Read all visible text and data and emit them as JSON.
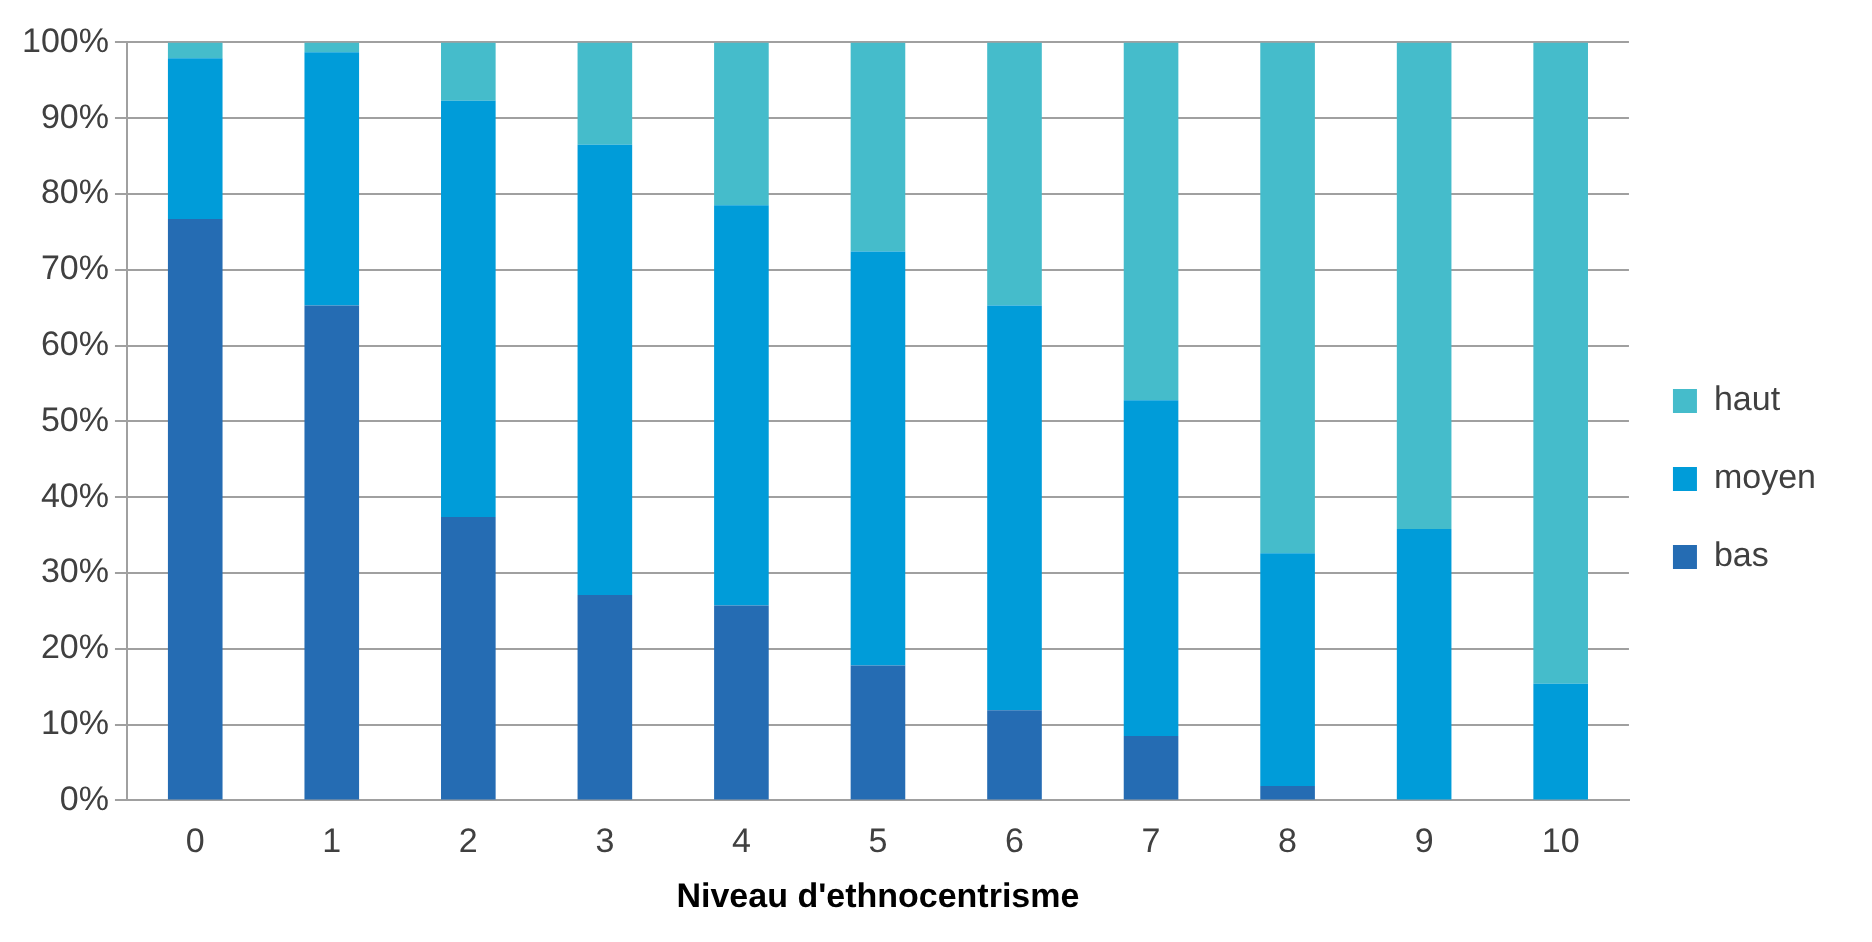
{
  "chart_data": {
    "type": "bar",
    "stacked": true,
    "xlabel": "Niveau d'ethnocentrisme",
    "categories": [
      "0",
      "1",
      "2",
      "3",
      "4",
      "5",
      "6",
      "7",
      "8",
      "9",
      "10"
    ],
    "series": [
      {
        "name": "bas",
        "color": "#256cb3",
        "values": [
          76.7,
          65.3,
          37.4,
          27.1,
          25.7,
          17.8,
          11.9,
          8.5,
          1.9,
          0,
          0
        ]
      },
      {
        "name": "moyen",
        "color": "#009cd9",
        "values": [
          21.2,
          33.4,
          54.9,
          59.4,
          52.8,
          54.6,
          53.4,
          44.3,
          30.7,
          35.8,
          15.4
        ]
      },
      {
        "name": "haut",
        "color": "#45bccb",
        "values": [
          2.1,
          1.3,
          7.7,
          13.5,
          21.5,
          27.6,
          34.7,
          47.2,
          67.4,
          64.2,
          84.6
        ]
      }
    ],
    "ylim": [
      0,
      100
    ],
    "yticks": [
      {
        "value": 0,
        "label": "0%"
      },
      {
        "value": 10,
        "label": "10%"
      },
      {
        "value": 20,
        "label": "20%"
      },
      {
        "value": 30,
        "label": "30%"
      },
      {
        "value": 40,
        "label": "40%"
      },
      {
        "value": 50,
        "label": "50%"
      },
      {
        "value": 60,
        "label": "60%"
      },
      {
        "value": 70,
        "label": "70%"
      },
      {
        "value": 80,
        "label": "80%"
      },
      {
        "value": 90,
        "label": "90%"
      },
      {
        "value": 100,
        "label": "100%"
      }
    ],
    "grid": "y",
    "legend": "right"
  }
}
